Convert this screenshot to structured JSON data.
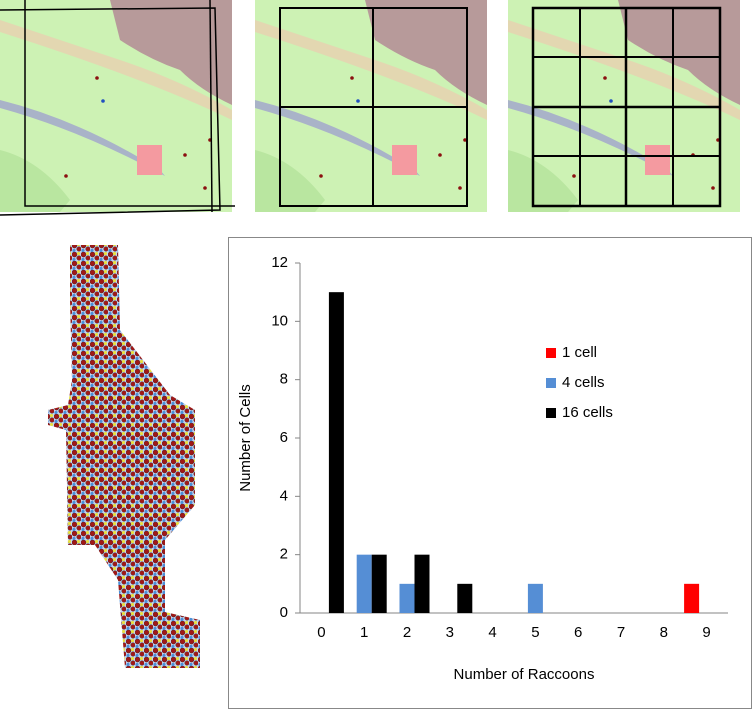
{
  "chart_data": {
    "type": "bar",
    "categories": [
      "0",
      "1",
      "2",
      "3",
      "4",
      "5",
      "6",
      "7",
      "8",
      "9"
    ],
    "series": [
      {
        "name": "1 cell",
        "color": "#ff0000",
        "values": [
          0,
          0,
          0,
          0,
          0,
          0,
          0,
          0,
          0,
          1
        ]
      },
      {
        "name": "4 cells",
        "color": "#558ed5",
        "values": [
          0,
          2,
          1,
          0,
          0,
          1,
          0,
          0,
          0,
          0
        ]
      },
      {
        "name": "16 cells",
        "color": "#000000",
        "values": [
          11,
          2,
          2,
          1,
          0,
          0,
          0,
          0,
          0,
          0
        ]
      }
    ],
    "xlabel": "Number of Raccoons",
    "ylabel": "Number of Cells",
    "ylim": [
      0,
      12
    ],
    "yticks": [
      0,
      2,
      4,
      6,
      8,
      10,
      12
    ],
    "grid": false,
    "legend": "right"
  }
}
